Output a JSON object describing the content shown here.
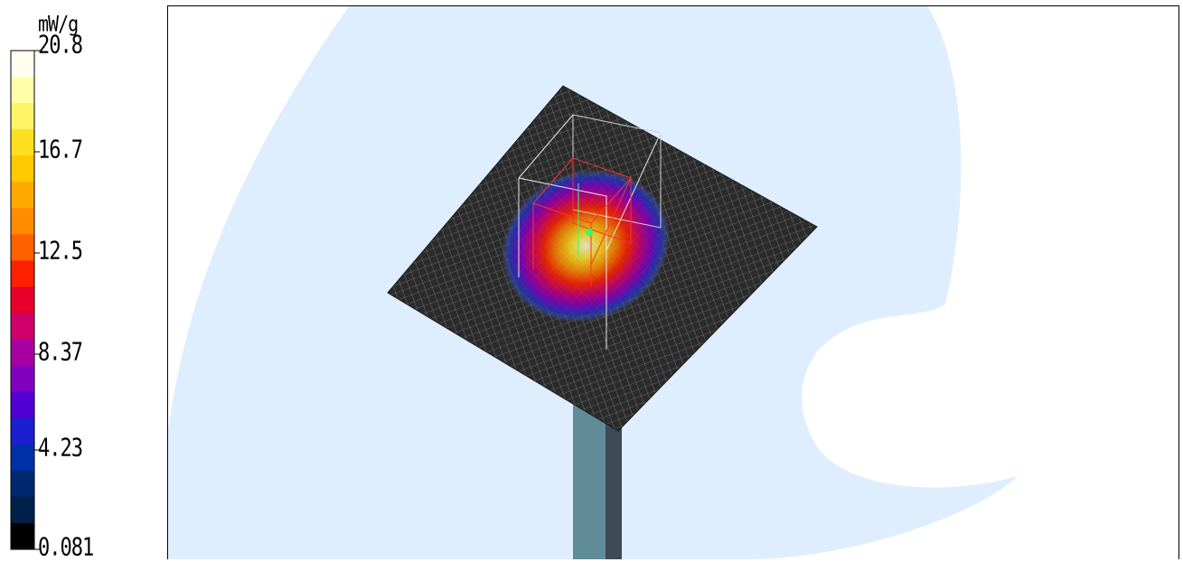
{
  "legend": {
    "unit": "mW/g",
    "labels": [
      "20.8",
      "16.7",
      "12.5",
      "8.37",
      "4.23",
      "0.081"
    ],
    "colors": [
      "#fffff0",
      "#ffffa8",
      "#fff466",
      "#ffe020",
      "#ffc800",
      "#ffa800",
      "#ff8c00",
      "#ff6000",
      "#ff2000",
      "#e8002a",
      "#d0006a",
      "#a800a0",
      "#8000c0",
      "#5000d0",
      "#1a20d0",
      "#0030a8",
      "#002870",
      "#00204a",
      "#000000"
    ]
  },
  "scene": {
    "background_color": "#dfeeff",
    "plate_color": "#2a2a2a",
    "post_color_front": "#5f8c96",
    "post_color_side": "#3e4a55",
    "hotspot_colors": [
      "#5a7cff",
      "#2030d0",
      "#8000c0",
      "#d0006a",
      "#ff2000",
      "#ff8c00",
      "#ffe020",
      "#ffffd0"
    ]
  }
}
